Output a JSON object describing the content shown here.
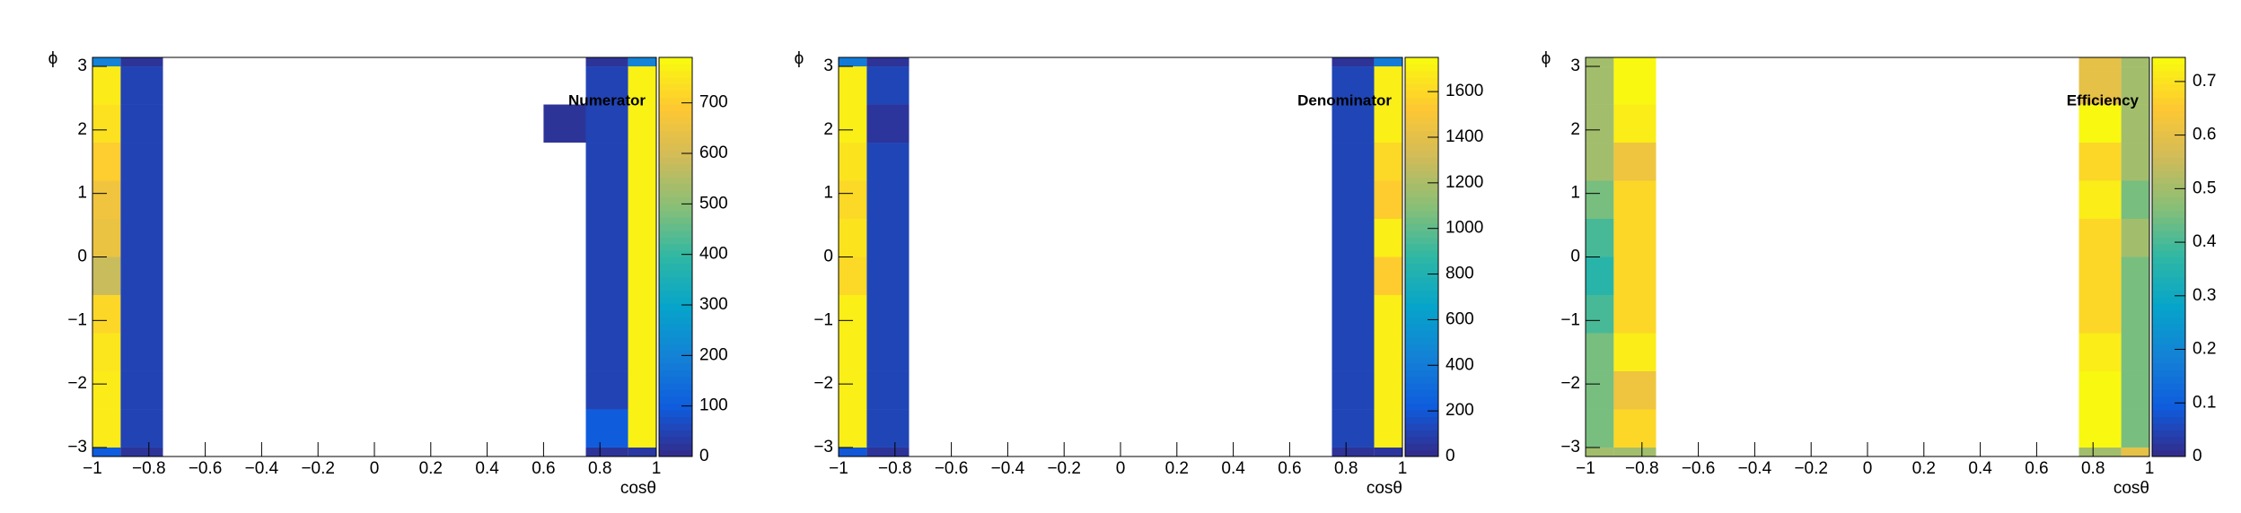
{
  "chart_data": [
    {
      "type": "heatmap",
      "title": "Numerator",
      "x_label": "cosθ",
      "y_label": "ϕ",
      "xlim": [
        -1,
        1
      ],
      "ylim": [
        -3.1416,
        3.1416
      ],
      "xedges": [
        -1,
        -0.9,
        -0.75,
        -0.6,
        -0.45,
        -0.3,
        -0.15,
        0,
        0.15,
        0.3,
        0.45,
        0.6,
        0.75,
        0.9,
        1
      ],
      "yedges": [
        -3.1416,
        -3,
        -2.4,
        -1.8,
        -1.2,
        -0.6,
        0,
        0.6,
        1.2,
        1.8,
        2.4,
        3,
        3.1416
      ],
      "z": [
        [
          100,
          20,
          null,
          null,
          null,
          null,
          null,
          null,
          null,
          null,
          null,
          null,
          20,
          30
        ],
        [
          760,
          50,
          null,
          null,
          null,
          null,
          null,
          null,
          null,
          null,
          null,
          null,
          100,
          770
        ],
        [
          760,
          50,
          null,
          null,
          null,
          null,
          null,
          null,
          null,
          null,
          null,
          null,
          50,
          770
        ],
        [
          750,
          50,
          null,
          null,
          null,
          null,
          null,
          null,
          null,
          null,
          null,
          null,
          50,
          770
        ],
        [
          720,
          50,
          null,
          null,
          null,
          null,
          null,
          null,
          null,
          null,
          null,
          null,
          50,
          770
        ],
        [
          580,
          50,
          null,
          null,
          null,
          null,
          null,
          null,
          null,
          null,
          null,
          null,
          50,
          770
        ],
        [
          650,
          50,
          null,
          null,
          null,
          null,
          null,
          null,
          null,
          null,
          null,
          null,
          50,
          770
        ],
        [
          660,
          50,
          null,
          null,
          null,
          null,
          null,
          null,
          null,
          null,
          null,
          null,
          50,
          770
        ],
        [
          700,
          50,
          null,
          null,
          null,
          null,
          null,
          null,
          null,
          null,
          null,
          null,
          50,
          770
        ],
        [
          740,
          50,
          null,
          null,
          null,
          null,
          null,
          null,
          null,
          null,
          null,
          20,
          50,
          770
        ],
        [
          760,
          50,
          null,
          null,
          null,
          null,
          null,
          null,
          null,
          null,
          null,
          null,
          50,
          770
        ],
        [
          200,
          20,
          null,
          null,
          null,
          null,
          null,
          null,
          null,
          null,
          null,
          null,
          20,
          200
        ]
      ],
      "zlim": [
        0,
        790
      ],
      "zticks": [
        0,
        100,
        200,
        300,
        400,
        500,
        600,
        700
      ],
      "xticks": [
        {
          "value": -1,
          "label": "−1"
        },
        {
          "value": -0.8,
          "label": "−0.8"
        },
        {
          "value": -0.6,
          "label": "−0.6"
        },
        {
          "value": -0.4,
          "label": "−0.4"
        },
        {
          "value": -0.2,
          "label": "−0.2"
        },
        0,
        0.2,
        0.4,
        0.6,
        0.8,
        1
      ],
      "yticks": [
        {
          "value": -3,
          "label": "−3"
        },
        {
          "value": -2,
          "label": "−2"
        },
        {
          "value": -1,
          "label": "−1"
        },
        0,
        1,
        2,
        3
      ],
      "palette": [
        "#352a87",
        "#0f5cdd",
        "#1481d6",
        "#06a4ca",
        "#2eb7a4",
        "#87bf77",
        "#d1bb59",
        "#fec832",
        "#f9fb0e"
      ]
    },
    {
      "type": "heatmap",
      "title": "Denominator",
      "x_label": "cosθ",
      "y_label": "ϕ",
      "xlim": [
        -1,
        1
      ],
      "ylim": [
        -3.1416,
        3.1416
      ],
      "xedges": [
        -1,
        -0.9,
        -0.75,
        -0.6,
        -0.45,
        -0.3,
        -0.15,
        0,
        0.15,
        0.3,
        0.45,
        0.6,
        0.75,
        0.9,
        1
      ],
      "yedges": [
        -3.1416,
        -3,
        -2.4,
        -1.8,
        -1.2,
        -0.6,
        0,
        0.6,
        1.2,
        1.8,
        2.4,
        3,
        3.1416
      ],
      "z": [
        [
          200,
          40,
          null,
          null,
          null,
          null,
          null,
          null,
          null,
          null,
          null,
          null,
          40,
          50
        ],
        [
          1700,
          120,
          null,
          null,
          null,
          null,
          null,
          null,
          null,
          null,
          null,
          null,
          120,
          1700
        ],
        [
          1700,
          120,
          null,
          null,
          null,
          null,
          null,
          null,
          null,
          null,
          null,
          null,
          120,
          1700
        ],
        [
          1700,
          120,
          null,
          null,
          null,
          null,
          null,
          null,
          null,
          null,
          null,
          null,
          120,
          1700
        ],
        [
          1700,
          120,
          null,
          null,
          null,
          null,
          null,
          null,
          null,
          null,
          null,
          null,
          120,
          1700
        ],
        [
          1600,
          120,
          null,
          null,
          null,
          null,
          null,
          null,
          null,
          null,
          null,
          null,
          120,
          1550
        ],
        [
          1650,
          120,
          null,
          null,
          null,
          null,
          null,
          null,
          null,
          null,
          null,
          null,
          120,
          1700
        ],
        [
          1600,
          120,
          null,
          null,
          null,
          null,
          null,
          null,
          null,
          null,
          null,
          null,
          120,
          1550
        ],
        [
          1650,
          120,
          null,
          null,
          null,
          null,
          null,
          null,
          null,
          null,
          null,
          null,
          120,
          1600
        ],
        [
          1700,
          50,
          null,
          null,
          null,
          null,
          null,
          null,
          null,
          null,
          null,
          null,
          120,
          1700
        ],
        [
          1700,
          120,
          null,
          null,
          null,
          null,
          null,
          null,
          null,
          null,
          null,
          null,
          120,
          1700
        ],
        [
          400,
          40,
          null,
          null,
          null,
          null,
          null,
          null,
          null,
          null,
          null,
          null,
          40,
          400
        ]
      ],
      "zlim": [
        0,
        1750
      ],
      "zticks": [
        0,
        200,
        400,
        600,
        800,
        1000,
        1200,
        1400,
        1600
      ],
      "xticks": [
        {
          "value": -1,
          "label": "−1"
        },
        {
          "value": -0.8,
          "label": "−0.8"
        },
        {
          "value": -0.6,
          "label": "−0.6"
        },
        {
          "value": -0.4,
          "label": "−0.4"
        },
        {
          "value": -0.2,
          "label": "−0.2"
        },
        0,
        0.2,
        0.4,
        0.6,
        0.8,
        1
      ],
      "yticks": [
        {
          "value": -3,
          "label": "−3"
        },
        {
          "value": -2,
          "label": "−2"
        },
        {
          "value": -1,
          "label": "−1"
        },
        0,
        1,
        2,
        3
      ],
      "palette": [
        "#352a87",
        "#0f5cdd",
        "#1481d6",
        "#06a4ca",
        "#2eb7a4",
        "#87bf77",
        "#d1bb59",
        "#fec832",
        "#f9fb0e"
      ]
    },
    {
      "type": "heatmap",
      "title": "Efficiency",
      "x_label": "cosθ",
      "y_label": "ϕ",
      "xlim": [
        -1,
        1
      ],
      "ylim": [
        -3.1416,
        3.1416
      ],
      "xedges": [
        -1,
        -0.9,
        -0.75,
        -0.6,
        -0.45,
        -0.3,
        -0.15,
        0,
        0.15,
        0.3,
        0.45,
        0.6,
        0.75,
        0.9,
        1
      ],
      "yedges": [
        -3.1416,
        -3,
        -2.4,
        -1.8,
        -1.2,
        -0.6,
        0,
        0.6,
        1.2,
        1.8,
        2.4,
        3,
        3.1416
      ],
      "z": [
        [
          0.5,
          0.5,
          null,
          null,
          null,
          null,
          null,
          null,
          null,
          null,
          null,
          null,
          0.5,
          0.6
        ],
        [
          0.45,
          0.68,
          null,
          null,
          null,
          null,
          null,
          null,
          null,
          null,
          null,
          null,
          0.74,
          0.45
        ],
        [
          0.45,
          0.62,
          null,
          null,
          null,
          null,
          null,
          null,
          null,
          null,
          null,
          null,
          0.74,
          0.45
        ],
        [
          0.45,
          0.72,
          null,
          null,
          null,
          null,
          null,
          null,
          null,
          null,
          null,
          null,
          0.72,
          0.45
        ],
        [
          0.4,
          0.68,
          null,
          null,
          null,
          null,
          null,
          null,
          null,
          null,
          null,
          null,
          0.68,
          0.45
        ],
        [
          0.36,
          0.68,
          null,
          null,
          null,
          null,
          null,
          null,
          null,
          null,
          null,
          null,
          0.68,
          0.45
        ],
        [
          0.4,
          0.68,
          null,
          null,
          null,
          null,
          null,
          null,
          null,
          null,
          null,
          null,
          0.68,
          0.5
        ],
        [
          0.45,
          0.68,
          null,
          null,
          null,
          null,
          null,
          null,
          null,
          null,
          null,
          null,
          0.72,
          0.45
        ],
        [
          0.5,
          0.62,
          null,
          null,
          null,
          null,
          null,
          null,
          null,
          null,
          null,
          null,
          0.68,
          0.5
        ],
        [
          0.5,
          0.72,
          null,
          null,
          null,
          null,
          null,
          null,
          null,
          null,
          null,
          null,
          0.74,
          0.5
        ],
        [
          0.5,
          0.74,
          null,
          null,
          null,
          null,
          null,
          null,
          null,
          null,
          null,
          null,
          0.6,
          0.5
        ],
        [
          0.5,
          0.74,
          null,
          null,
          null,
          null,
          null,
          null,
          null,
          null,
          null,
          null,
          0.6,
          0.5
        ]
      ],
      "zlim": [
        0,
        0.745
      ],
      "zticks": [
        0,
        0.1,
        0.2,
        0.3,
        0.4,
        0.5,
        0.6,
        0.7
      ],
      "xticks": [
        {
          "value": -1,
          "label": "−1"
        },
        {
          "value": -0.8,
          "label": "−0.8"
        },
        {
          "value": -0.6,
          "label": "−0.6"
        },
        {
          "value": -0.4,
          "label": "−0.4"
        },
        {
          "value": -0.2,
          "label": "−0.2"
        },
        0,
        0.2,
        0.4,
        0.6,
        0.8,
        1
      ],
      "yticks": [
        {
          "value": -3,
          "label": "−3"
        },
        {
          "value": -2,
          "label": "−2"
        },
        {
          "value": -1,
          "label": "−1"
        },
        0,
        1,
        2,
        3
      ],
      "palette": [
        "#352a87",
        "#0f5cdd",
        "#1481d6",
        "#06a4ca",
        "#2eb7a4",
        "#87bf77",
        "#d1bb59",
        "#fec832",
        "#f9fb0e"
      ]
    }
  ]
}
